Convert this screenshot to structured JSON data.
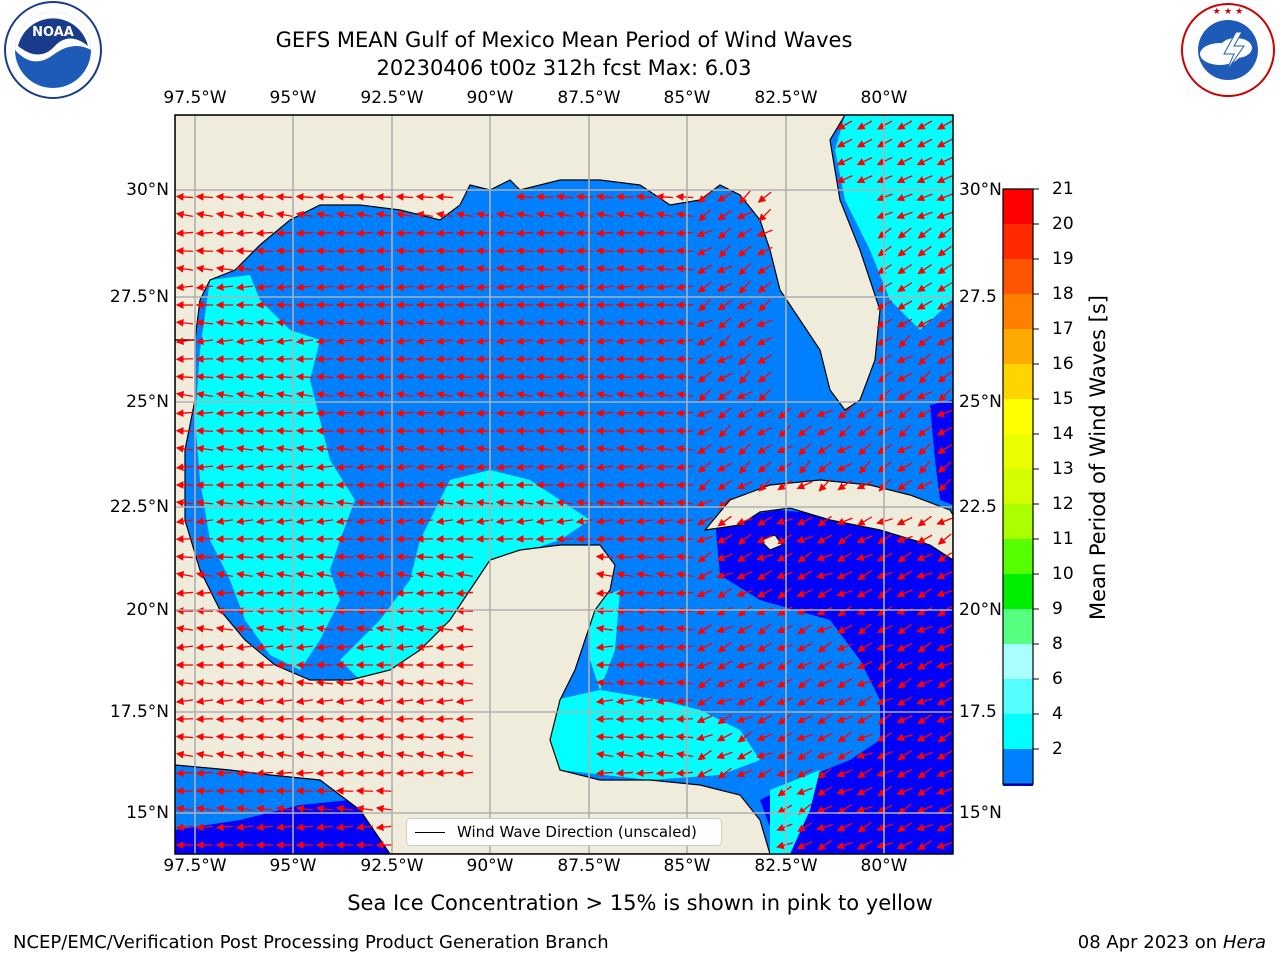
{
  "header": {
    "title_line1": "GEFS MEAN Gulf of Mexico Mean Period of Wind Waves",
    "title_line2": "20230406 t00z 312h fcst   Max: 6.03"
  },
  "logos": {
    "left": {
      "name": "noaa-logo",
      "text": "NOAA",
      "ring_text": "NATIONAL OCEANIC AND ATMOSPHERIC ADMINISTRATION · U.S. DEPARTMENT OF COMMERCE"
    },
    "right": {
      "name": "nws-logo",
      "ring_text": "NATIONAL WEATHER SERVICE"
    }
  },
  "map": {
    "lon_ticks": [
      "97.5°W",
      "95°W",
      "92.5°W",
      "90°W",
      "87.5°W",
      "85°W",
      "82.5°W",
      "80°W"
    ],
    "lat_ticks_left": [
      "30°N",
      "27.5°N",
      "25°N",
      "22.5°N",
      "20°N",
      "17.5°N",
      "15°N"
    ],
    "lat_ticks_right": [
      "30°N",
      "27.5",
      "25°N",
      "22.5",
      "20°N",
      "17.5",
      "15°N"
    ],
    "legend": "Wind Wave Direction (unscaled)",
    "colors": {
      "land": "#efecdc",
      "band_2_4": "#0080ff",
      "band_4_6": "#00ffff",
      "below_2": "#0000ff",
      "arrow": "#ff0000",
      "grid": "#b0b0b0"
    }
  },
  "colorbar": {
    "label": "Mean Period of Wind Waves [s]",
    "ticks": [
      "21",
      "20",
      "19",
      "18",
      "17",
      "16",
      "15",
      "14",
      "13",
      "12",
      "11",
      "10",
      "9",
      "8",
      "6",
      "4",
      "2"
    ],
    "colors": [
      "#ff0000",
      "#ff2a00",
      "#ff5500",
      "#ff8000",
      "#ffaa00",
      "#ffd400",
      "#ffff00",
      "#eaff00",
      "#d4ff00",
      "#aaff00",
      "#55ff00",
      "#00ee00",
      "#55ff80",
      "#aaffff",
      "#55ffff",
      "#00ffff",
      "#0080ff"
    ],
    "extend_color": "#0000ff"
  },
  "footer": {
    "note": "Sea Ice Concentration > 15% is shown in pink to yellow",
    "left": "NCEP/EMC/Verification Post Processing Product Generation Branch",
    "right_date": "08 Apr 2023 on ",
    "right_host": "Hera"
  }
}
